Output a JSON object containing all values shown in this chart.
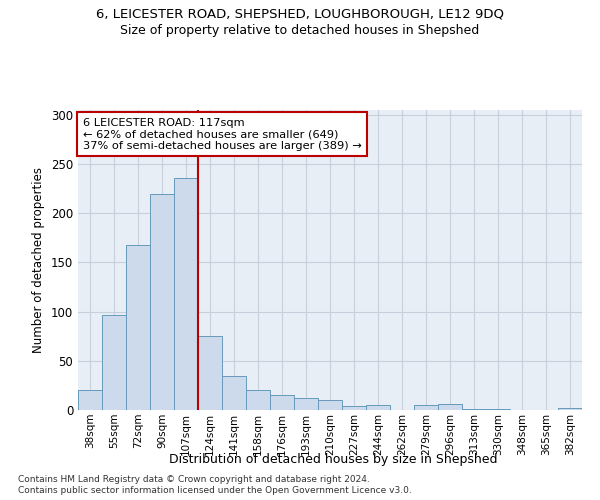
{
  "title1": "6, LEICESTER ROAD, SHEPSHED, LOUGHBOROUGH, LE12 9DQ",
  "title2": "Size of property relative to detached houses in Shepshed",
  "xlabel": "Distribution of detached houses by size in Shepshed",
  "ylabel": "Number of detached properties",
  "footer1": "Contains HM Land Registry data © Crown copyright and database right 2024.",
  "footer2": "Contains public sector information licensed under the Open Government Licence v3.0.",
  "bin_labels": [
    "38sqm",
    "55sqm",
    "72sqm",
    "90sqm",
    "107sqm",
    "124sqm",
    "141sqm",
    "158sqm",
    "176sqm",
    "193sqm",
    "210sqm",
    "227sqm",
    "244sqm",
    "262sqm",
    "279sqm",
    "296sqm",
    "313sqm",
    "330sqm",
    "348sqm",
    "365sqm",
    "382sqm"
  ],
  "bar_values": [
    20,
    97,
    168,
    220,
    236,
    75,
    35,
    20,
    15,
    12,
    10,
    4,
    5,
    0,
    5,
    6,
    1,
    1,
    0,
    0,
    2
  ],
  "bar_color": "#ccdaeb",
  "bar_edge_color": "#6699bb",
  "grid_color": "#c5d0dc",
  "background_color": "#e8eef5",
  "red_line_x": 4.5,
  "annotation_line1": "6 LEICESTER ROAD: 117sqm",
  "annotation_line2": "← 62% of detached houses are smaller (649)",
  "annotation_line3": "37% of semi-detached houses are larger (389) →",
  "red_line_color": "#bb0000",
  "ylim": [
    0,
    305
  ],
  "yticks": [
    0,
    50,
    100,
    150,
    200,
    250,
    300
  ]
}
